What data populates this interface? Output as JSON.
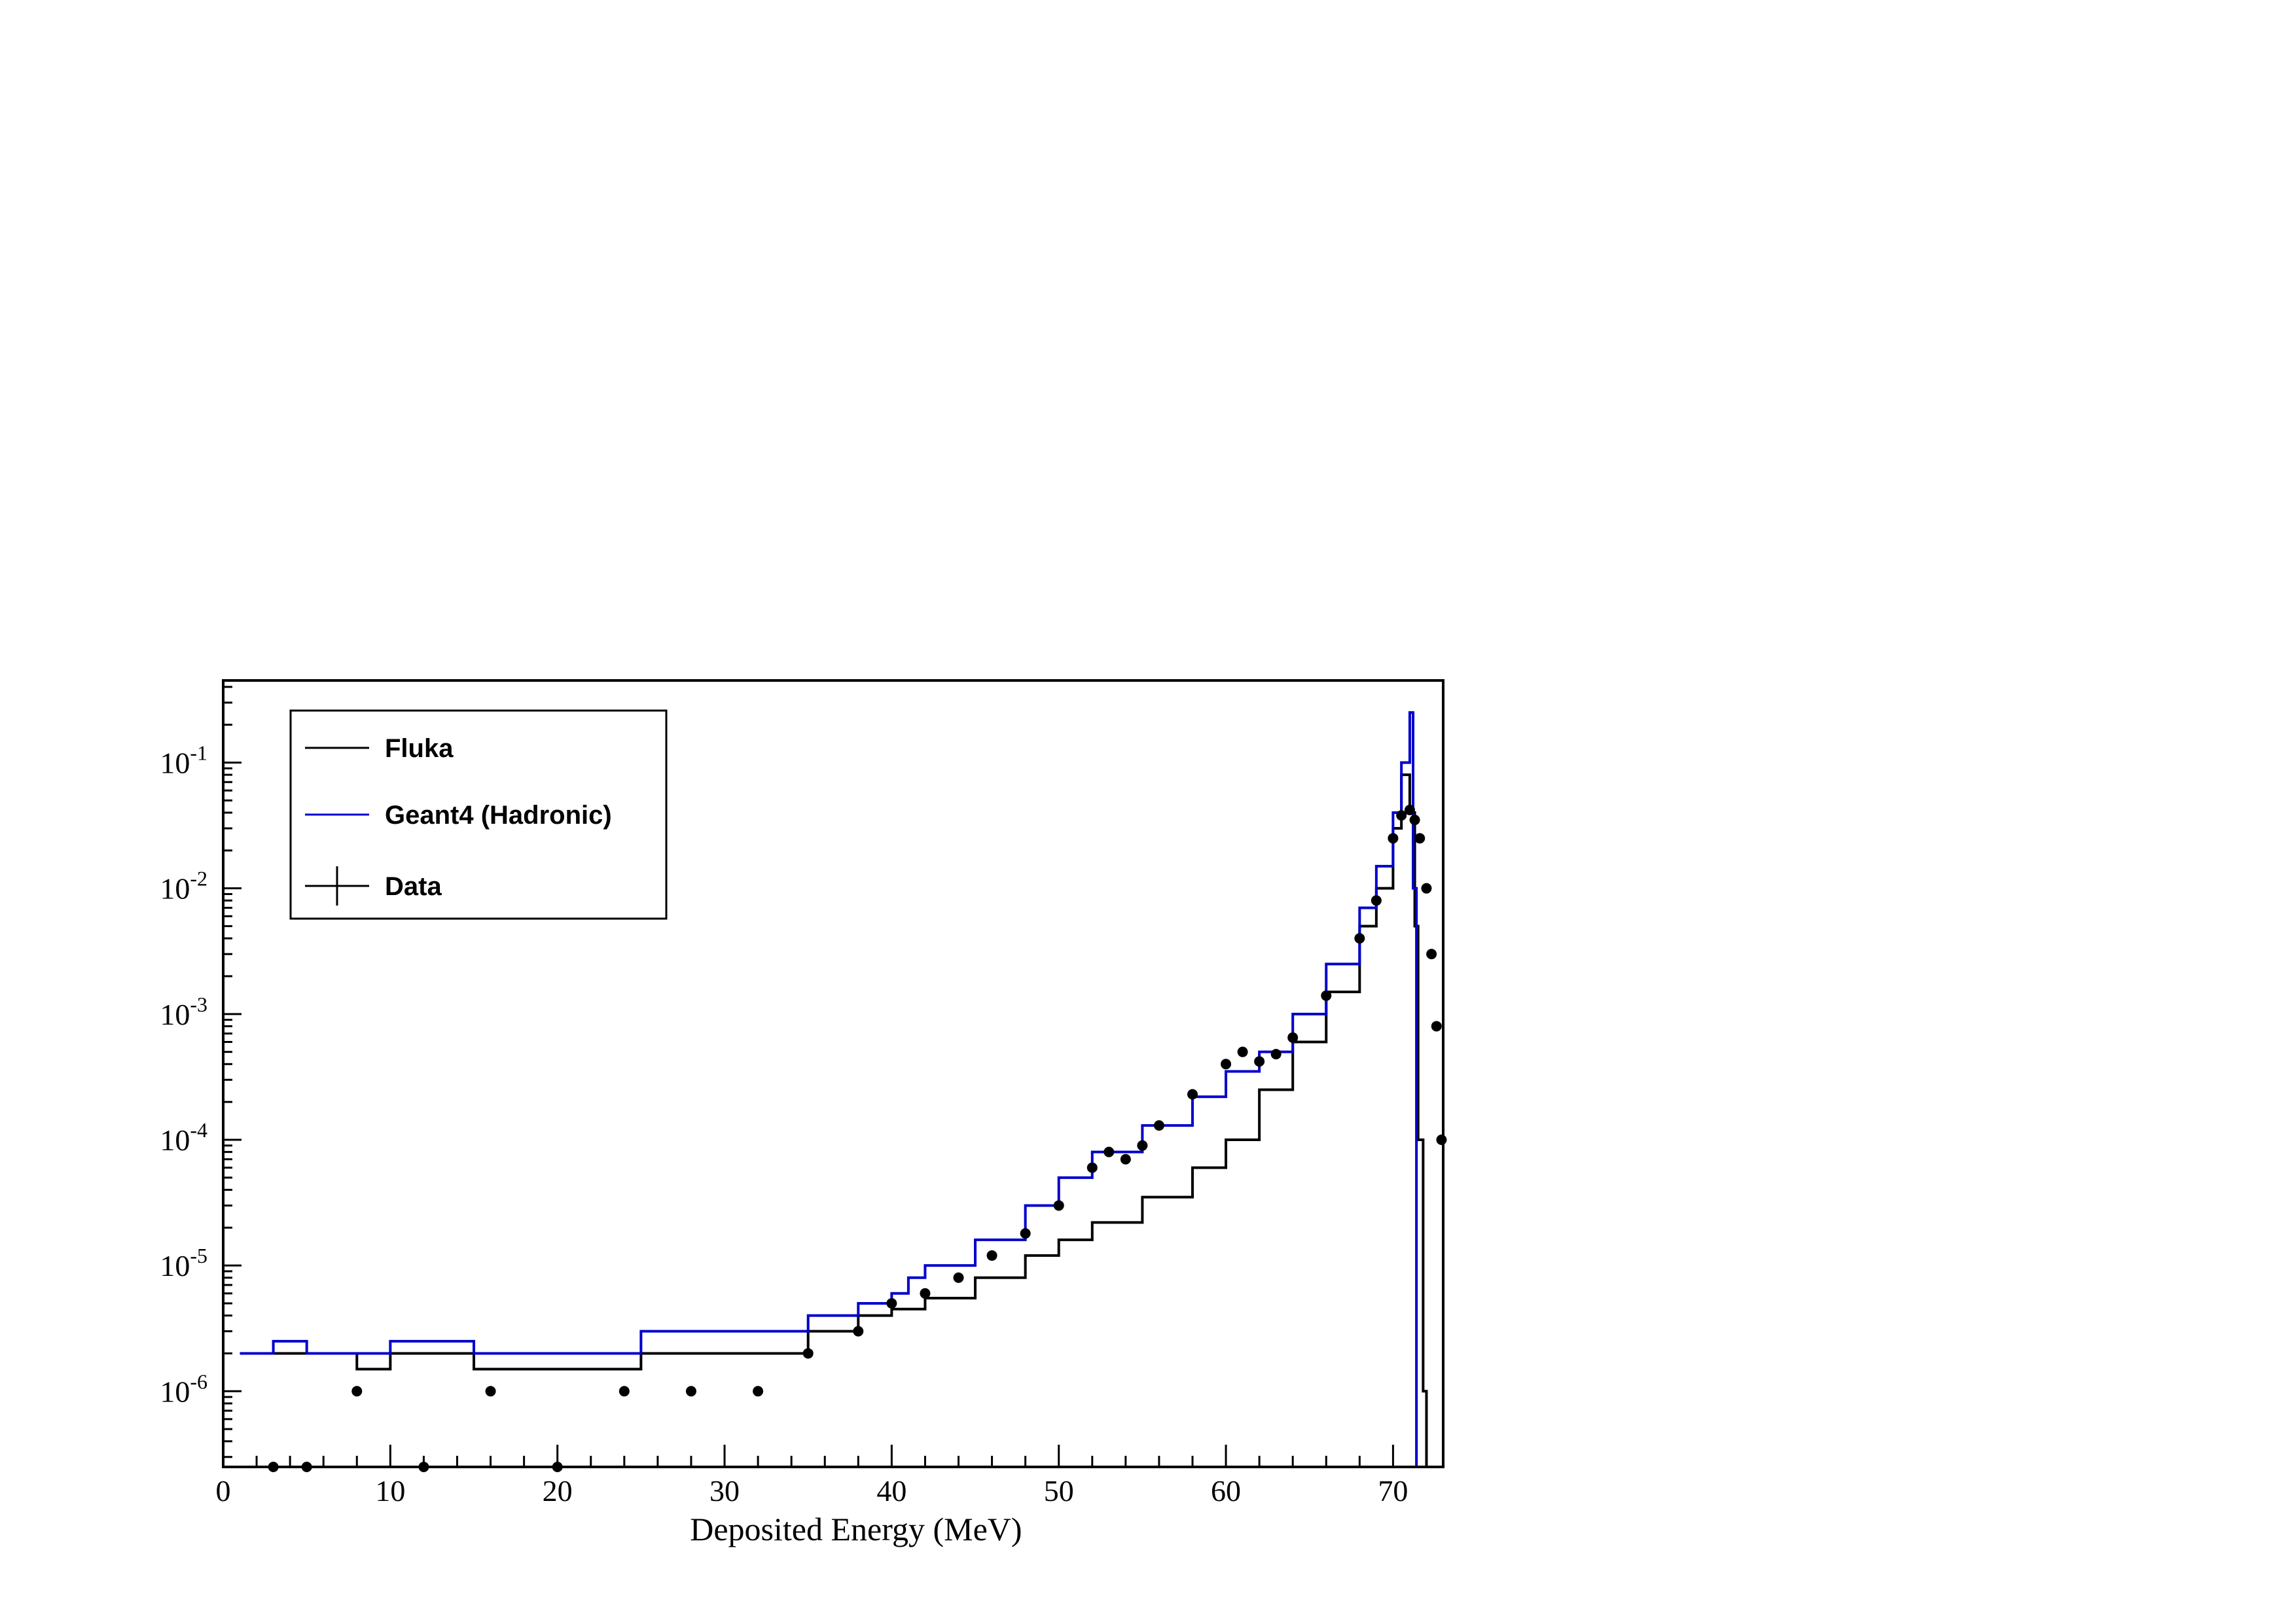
{
  "chart_data": {
    "type": "line",
    "title": "",
    "xlabel": "Deposited Energy (MeV)",
    "ylabel": "",
    "xlim": [
      0,
      73
    ],
    "ylim": [
      2.5e-07,
      0.45
    ],
    "y_scale": "log",
    "grid": false,
    "legend_position": "top-left",
    "x_ticks": [
      0,
      10,
      20,
      30,
      40,
      50,
      60,
      70
    ],
    "x_tick_labels": [
      "0",
      "10",
      "20",
      "30",
      "40",
      "50",
      "60",
      "70"
    ],
    "y_ticks": [
      {
        "value": 1e-06,
        "base": "10",
        "exp": "-6"
      },
      {
        "value": 1e-05,
        "base": "10",
        "exp": "-5"
      },
      {
        "value": 0.0001,
        "base": "10",
        "exp": "-4"
      },
      {
        "value": 0.001,
        "base": "10",
        "exp": "-3"
      },
      {
        "value": 0.01,
        "base": "10",
        "exp": "-2"
      },
      {
        "value": 0.1,
        "base": "10",
        "exp": "-1"
      }
    ],
    "series": [
      {
        "name": "Fluka",
        "style": "step",
        "color": "#000000",
        "x": [
          1,
          3,
          5,
          8,
          10,
          15,
          20,
          25,
          30,
          35,
          38,
          40,
          42,
          45,
          48,
          50,
          52,
          55,
          58,
          60,
          62,
          64,
          66,
          68,
          69,
          70,
          70.5,
          71,
          71.3,
          71.5,
          71.8,
          72
        ],
        "y": [
          2e-06,
          2e-06,
          2e-06,
          1.5e-06,
          2e-06,
          1.5e-06,
          1.5e-06,
          2e-06,
          2e-06,
          3e-06,
          4e-06,
          4.5e-06,
          5.5e-06,
          8e-06,
          1.2e-05,
          1.6e-05,
          2.2e-05,
          3.5e-05,
          6e-05,
          0.0001,
          0.00025,
          0.0006,
          0.0015,
          0.005,
          0.01,
          0.03,
          0.08,
          0.04,
          0.005,
          0.0001,
          1e-06,
          2.5e-07
        ]
      },
      {
        "name": "Geant4 (Hadronic)",
        "style": "step",
        "color": "#0000cc",
        "x": [
          1,
          3,
          5,
          8,
          10,
          15,
          20,
          25,
          30,
          35,
          38,
          40,
          41,
          42,
          45,
          48,
          50,
          52,
          55,
          58,
          60,
          62,
          64,
          66,
          68,
          69,
          70,
          70.5,
          71,
          71.2,
          71.4
        ],
        "y": [
          2e-06,
          2.5e-06,
          2e-06,
          2e-06,
          2.5e-06,
          2e-06,
          2e-06,
          3e-06,
          3e-06,
          4e-06,
          5e-06,
          6e-06,
          8e-06,
          1e-05,
          1.6e-05,
          3e-05,
          5e-05,
          8e-05,
          0.00013,
          0.00022,
          0.00035,
          0.0005,
          0.001,
          0.0025,
          0.007,
          0.015,
          0.04,
          0.1,
          0.25,
          0.01,
          2.5e-07
        ]
      },
      {
        "name": "Data",
        "style": "markers",
        "color": "#000000",
        "x": [
          3,
          5,
          8,
          12,
          16,
          20,
          24,
          28,
          32,
          35,
          38,
          40,
          42,
          44,
          46,
          48,
          50,
          52,
          53,
          54,
          55,
          56,
          58,
          60,
          61,
          62,
          63,
          64,
          66,
          68,
          69,
          70,
          70.5,
          71,
          71.3,
          71.6,
          72,
          72.3,
          72.6,
          72.9
        ],
        "y": [
          2.5e-07,
          2.5e-07,
          1e-06,
          2.5e-07,
          1e-06,
          2.5e-07,
          1e-06,
          1e-06,
          1e-06,
          2e-06,
          3e-06,
          5e-06,
          6e-06,
          8e-06,
          1.2e-05,
          1.8e-05,
          3e-05,
          6e-05,
          8e-05,
          7e-05,
          9e-05,
          0.00013,
          0.00023,
          0.0004,
          0.0005,
          0.00042,
          0.00048,
          0.00065,
          0.0014,
          0.004,
          0.008,
          0.025,
          0.038,
          0.042,
          0.035,
          0.025,
          0.01,
          0.003,
          0.0008,
          0.0001
        ]
      }
    ]
  }
}
